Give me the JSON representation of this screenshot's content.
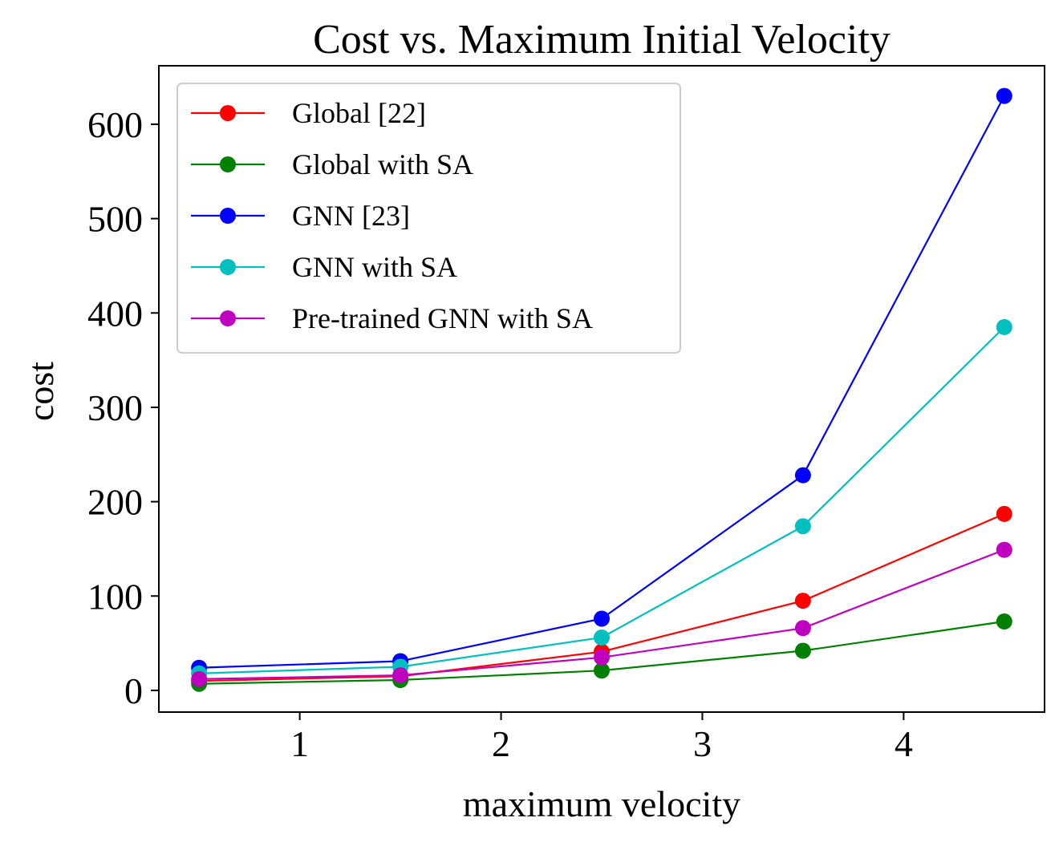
{
  "chart_data": {
    "type": "line",
    "title": "Cost vs. Maximum Initial Velocity",
    "xlabel": "maximum velocity",
    "ylabel": "cost",
    "x": [
      0.5,
      1.5,
      2.5,
      3.5,
      4.5
    ],
    "xlim": [
      0.3,
      4.7
    ],
    "ylim": [
      -23,
      662
    ],
    "xticks": [
      1,
      2,
      3,
      4
    ],
    "xtick_labels": [
      "1",
      "2",
      "3",
      "4"
    ],
    "yticks": [
      0,
      100,
      200,
      300,
      400,
      500,
      600
    ],
    "ytick_labels": [
      "0",
      "100",
      "200",
      "300",
      "400",
      "500",
      "600"
    ],
    "grid": false,
    "legend_position": "top-left",
    "series": [
      {
        "name": "Global [22]",
        "color": "#ff0000",
        "values": [
          10,
          15,
          41,
          95,
          187
        ]
      },
      {
        "name": "Global with SA",
        "color": "#008000",
        "values": [
          7,
          11,
          21,
          42,
          73
        ]
      },
      {
        "name": "GNN [23]",
        "color": "#0000ff",
        "values": [
          24,
          31,
          76,
          228,
          630
        ]
      },
      {
        "name": "GNN with SA",
        "color": "#00bfbf",
        "values": [
          18,
          25,
          56,
          174,
          385
        ]
      },
      {
        "name": "Pre-trained GNN with SA",
        "color": "#bf00bf",
        "values": [
          12,
          16,
          35,
          66,
          149
        ]
      }
    ]
  }
}
